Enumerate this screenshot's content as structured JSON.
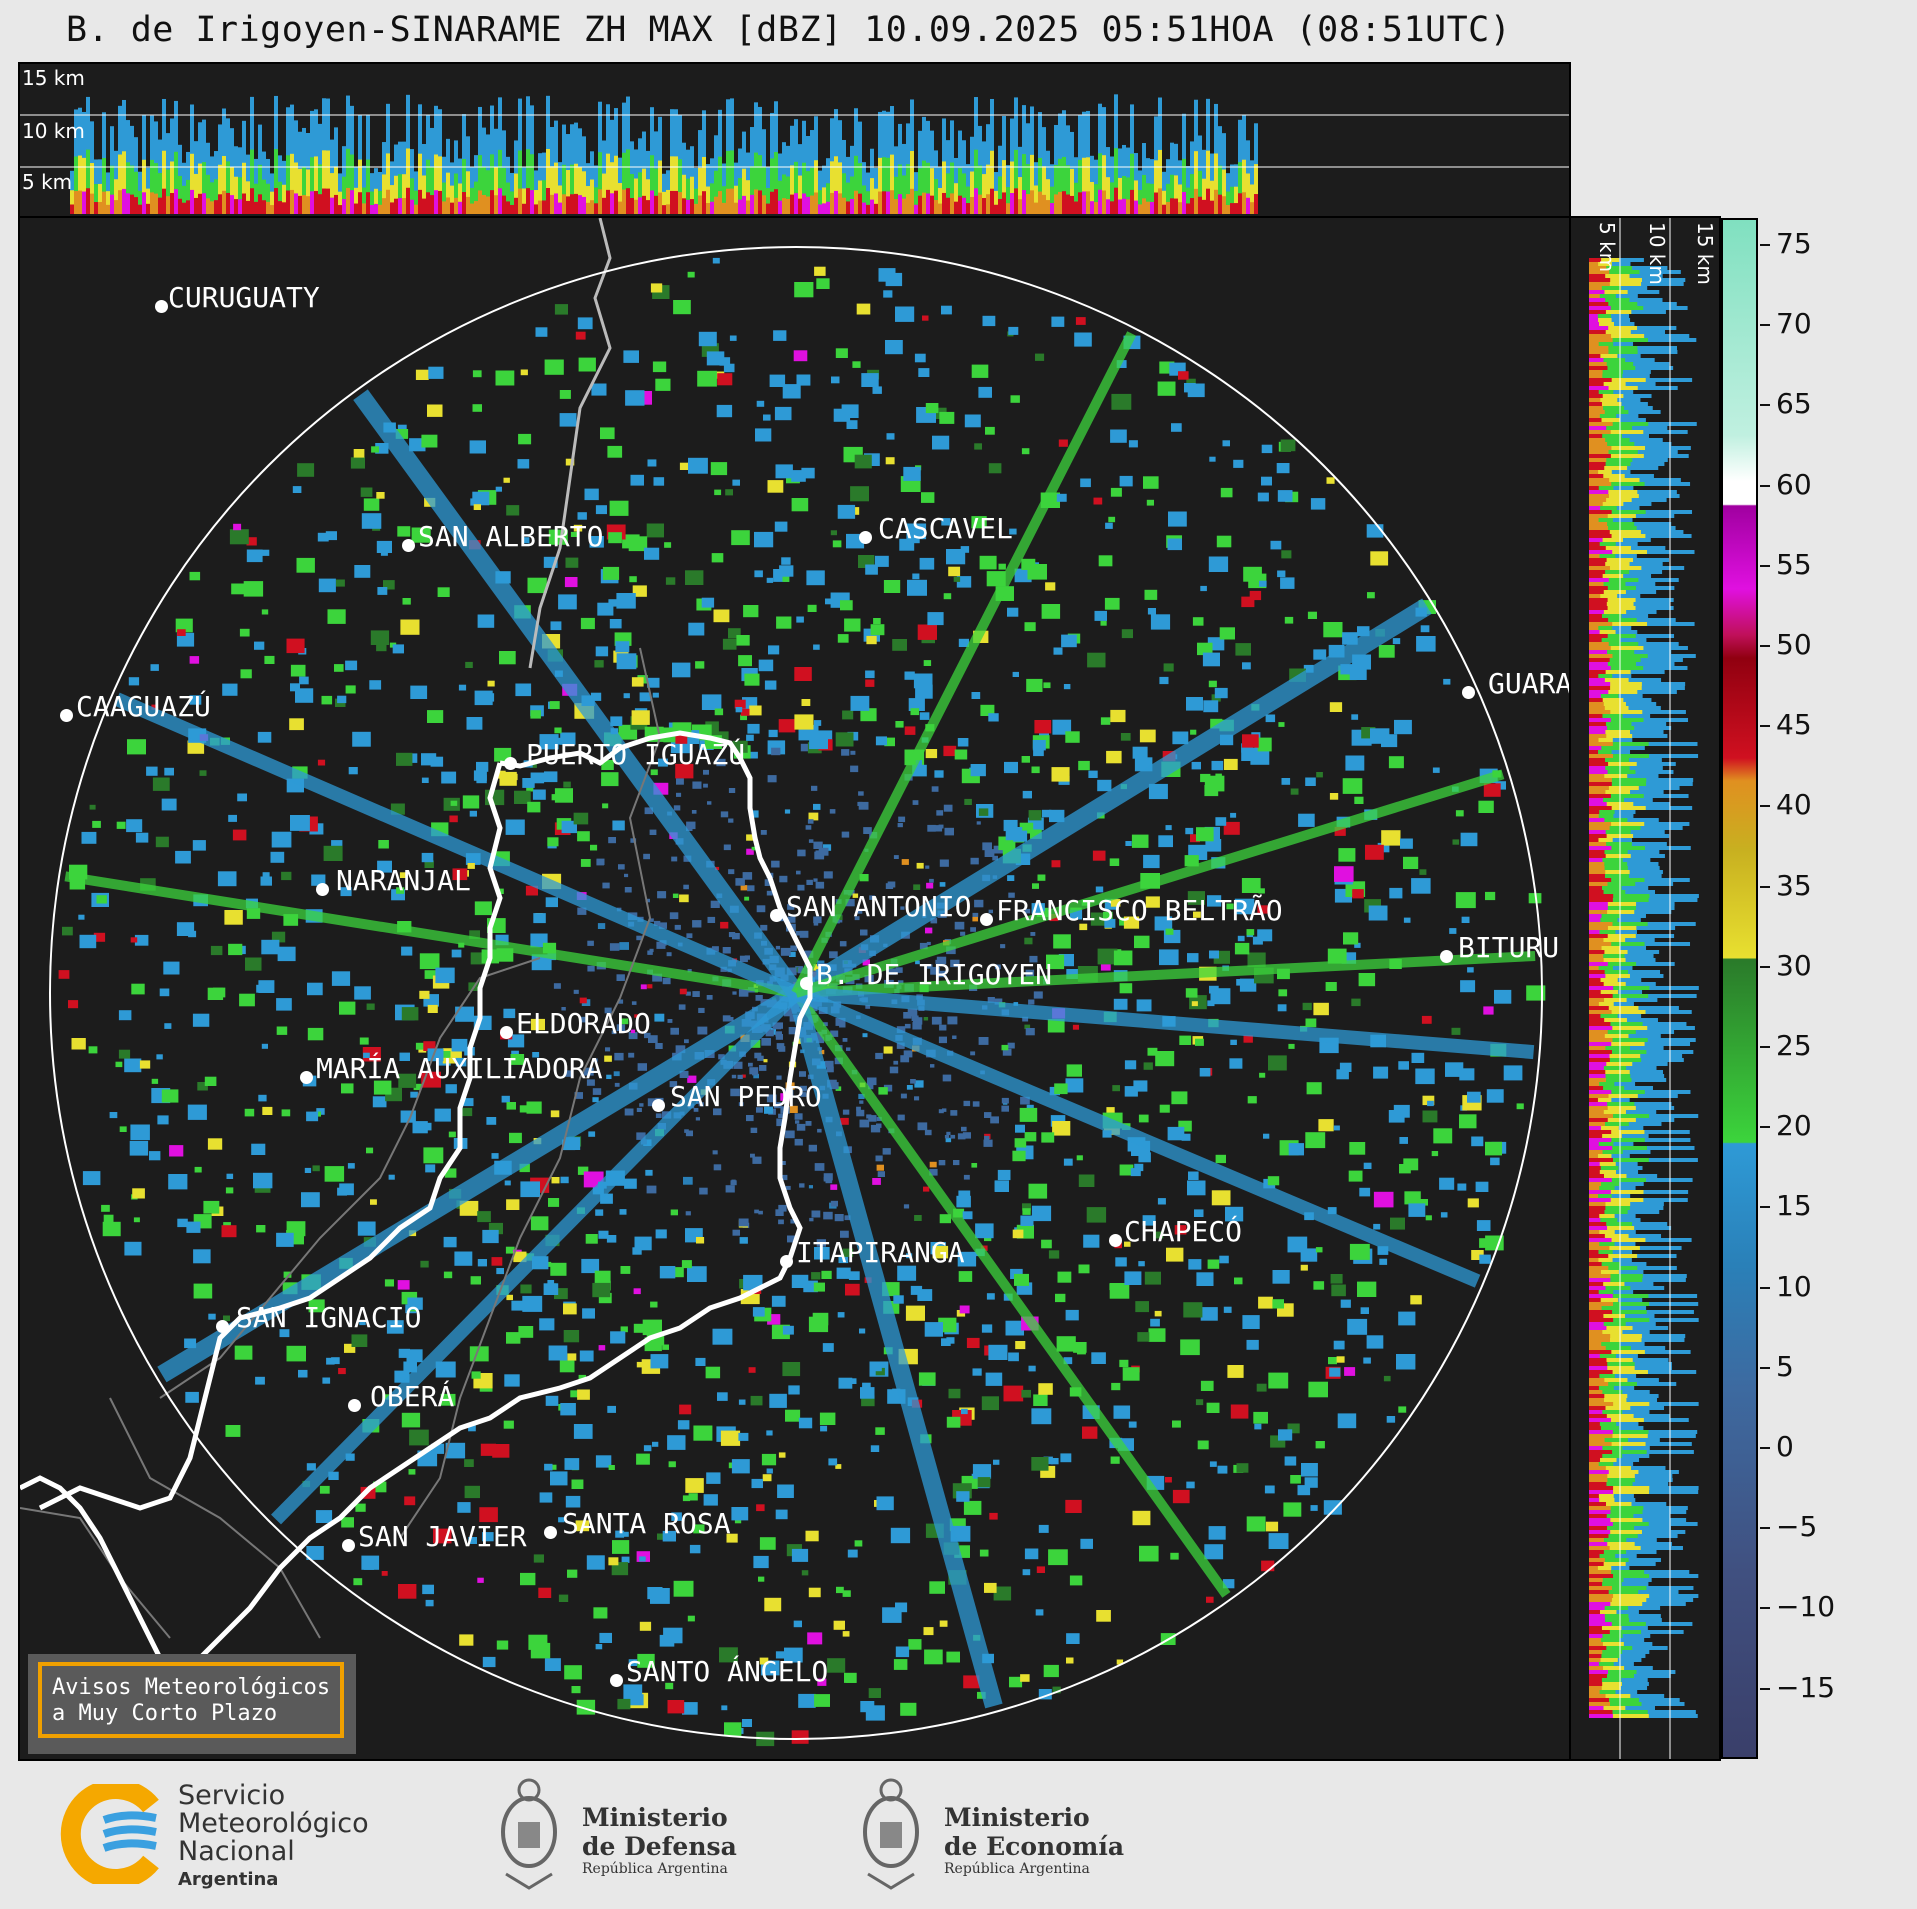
{
  "title": "B. de Irigoyen-SINARAME ZH MAX [dBZ] 10.09.2025 05:51HOA (08:51UTC)",
  "altitude_labels": {
    "km15": "15 km",
    "km10": "10 km",
    "km5": "5 km"
  },
  "cities": [
    {
      "name": "CURUGUATY"
    },
    {
      "name": "SAN ALBERTO"
    },
    {
      "name": "CASCAVEL"
    },
    {
      "name": "CAAGUAZÚ"
    },
    {
      "name": "GUARA"
    },
    {
      "name": "PUERTO IGUAZÚ"
    },
    {
      "name": "NARANJAL"
    },
    {
      "name": "SAN ANTONIO"
    },
    {
      "name": "FRANCISCO BELTRÃO"
    },
    {
      "name": "BITURU"
    },
    {
      "name": "B. DE IRIGOYEN"
    },
    {
      "name": "ELDORADO"
    },
    {
      "name": "MARÍA AUXILIADORA"
    },
    {
      "name": "SAN PEDRO"
    },
    {
      "name": "CHAPECÓ"
    },
    {
      "name": "ITAPIRANGA"
    },
    {
      "name": "SAN IGNACIO"
    },
    {
      "name": "OBERÁ"
    },
    {
      "name": "SAN JAVIER"
    },
    {
      "name": "SANTA ROSA"
    },
    {
      "name": "SANTO ÁNGELO"
    }
  ],
  "colorbar": {
    "ticks": [
      "75",
      "70",
      "65",
      "60",
      "55",
      "50",
      "45",
      "40",
      "35",
      "30",
      "25",
      "20",
      "15",
      "10",
      "5",
      "0",
      "−5",
      "−10",
      "−15"
    ],
    "range_dbz": [
      -20,
      77
    ],
    "colors": {
      "very_low": "#3a3f6a",
      "low": "#3d6aa0",
      "blue": "#2e9ad6",
      "green": "#3cd43c",
      "dark_green": "#2a7a2a",
      "yellow": "#e8e030",
      "orange": "#e09020",
      "red": "#d01020",
      "dark_red": "#900010",
      "magenta": "#e010e0",
      "purple": "#a000a0",
      "white": "#ffffff",
      "light_cyan": "#80e0c0"
    }
  },
  "warning": {
    "line1": "Avisos Meteorológicos",
    "line2": "a Muy Corto Plazo"
  },
  "logos": {
    "smn": {
      "line1": "Servicio",
      "line2": "Meteorológico",
      "line3": "Nacional",
      "line4": "Argentina"
    },
    "defensa": {
      "line1": "Ministerio",
      "line2": "de Defensa",
      "line3": "República Argentina"
    },
    "economia": {
      "line1": "Ministerio",
      "line2": "de Economía",
      "line3": "República Argentina"
    }
  }
}
